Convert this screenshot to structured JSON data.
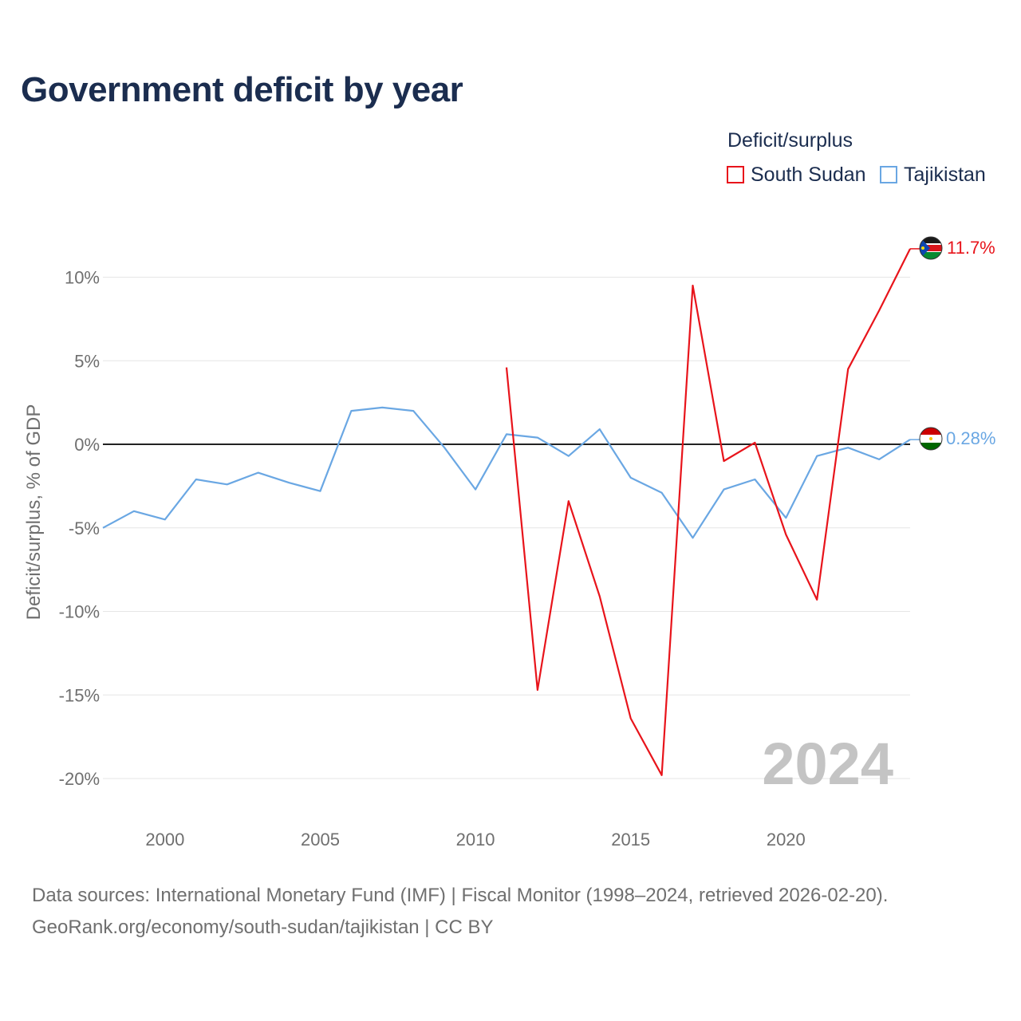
{
  "chart_data": {
    "type": "line",
    "title": "Government deficit by year",
    "ylabel": "Deficit/surplus, % of GDP",
    "xlabel": "",
    "legend_title": "Deficit/surplus",
    "legend_position": "top-right",
    "year_watermark": "2024",
    "xlim": [
      1998,
      2024
    ],
    "ylim": [
      -22,
      13
    ],
    "x_ticks": [
      2000,
      2005,
      2010,
      2015,
      2020
    ],
    "x_tick_labels": [
      "2000",
      "2005",
      "2010",
      "2015",
      "2020"
    ],
    "y_ticks": [
      10,
      5,
      0,
      -5,
      -10,
      -15,
      -20
    ],
    "y_tick_labels": [
      "10%",
      "5%",
      "0%",
      "-5%",
      "-10%",
      "-15%",
      "-20%"
    ],
    "series": [
      {
        "name": "South Sudan",
        "color": "#e8141b",
        "end_label": "11.7%",
        "flag_icon": "south-sudan-flag-icon",
        "x": [
          2011,
          2012,
          2013,
          2014,
          2015,
          2016,
          2017,
          2018,
          2019,
          2020,
          2021,
          2022,
          2023,
          2024
        ],
        "values": [
          4.6,
          -14.7,
          -3.4,
          -9.1,
          -16.4,
          -19.8,
          9.5,
          -1.0,
          0.1,
          -5.4,
          -9.3,
          4.5,
          8.0,
          11.7
        ]
      },
      {
        "name": "Tajikistan",
        "color": "#6aa7e3",
        "end_label": "0.28%",
        "flag_icon": "tajikistan-flag-icon",
        "x": [
          1998,
          1999,
          2000,
          2001,
          2002,
          2003,
          2004,
          2005,
          2006,
          2007,
          2008,
          2009,
          2010,
          2011,
          2012,
          2013,
          2014,
          2015,
          2016,
          2017,
          2018,
          2019,
          2020,
          2021,
          2022,
          2023,
          2024
        ],
        "values": [
          -5.0,
          -4.0,
          -4.5,
          -2.1,
          -2.4,
          -1.7,
          -2.3,
          -2.8,
          2.0,
          2.2,
          2.0,
          -0.2,
          -2.7,
          0.6,
          0.4,
          -0.7,
          0.9,
          -2.0,
          -2.9,
          -5.6,
          -2.7,
          -2.1,
          -4.4,
          -0.7,
          -0.2,
          -0.9,
          0.28
        ]
      }
    ]
  },
  "footer": {
    "sources": "Data sources: International Monetary Fund (IMF) | Fiscal Monitor (1998–2024, retrieved 2026-02-20).",
    "credit": "GeoRank.org/economy/south-sudan/tajikistan | CC BY"
  }
}
